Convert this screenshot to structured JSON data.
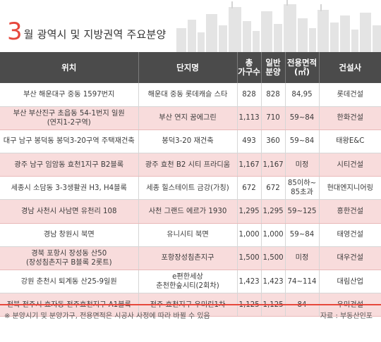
{
  "title": {
    "number": "3",
    "text": "월 광역시 및 지방권역 주요분양"
  },
  "colors": {
    "accent": "#e6473c",
    "header_bg": "#4b4b4b",
    "stripe": "#f8dcdc"
  },
  "table": {
    "headers": {
      "location": "위치",
      "complex": "단지명",
      "total_l1": "총",
      "total_l2": "가구수",
      "general_l1": "일반",
      "general_l2": "분양",
      "area_l1": "전용면적",
      "area_l2": "(㎡)",
      "builder": "건설사"
    },
    "rows": [
      {
        "location": "부산 해운대구 중동 1597번지",
        "location2": "",
        "complex": "해운대 중동 롯데캐슬 스타",
        "complex2": "",
        "total": "828",
        "general": "828",
        "area": "84,95",
        "area2": "",
        "builder": "롯데건설"
      },
      {
        "location": "부산 부산진구 초읍동 54-1번지 일원",
        "location2": "(연지1-2구역)",
        "complex": "부산 연지 꿈에그린",
        "complex2": "",
        "total": "1,113",
        "general": "710",
        "area": "59~84",
        "area2": "",
        "builder": "한화건설"
      },
      {
        "location": "대구 남구 봉덕동 봉덕3-20구역 주택재건축",
        "location2": "",
        "complex": "봉덕3-20 재건축",
        "complex2": "",
        "total": "493",
        "general": "360",
        "area": "59~84",
        "area2": "",
        "builder": "태왕E&C"
      },
      {
        "location": "광주 남구 임암동 효천1지구 B2블록",
        "location2": "",
        "complex": "광주 효천 B2 시티 프라디움",
        "complex2": "",
        "total": "1,167",
        "general": "1,167",
        "area": "미정",
        "area2": "",
        "builder": "시티건설"
      },
      {
        "location": "세종시 소담동 3-3생활권 H3, H4블록",
        "location2": "",
        "complex": "세종 힐스테이트 금강(가칭)",
        "complex2": "",
        "total": "672",
        "general": "672",
        "area": "85이하~",
        "area2": "85초과",
        "builder": "현대엔지니어링"
      },
      {
        "location": "경남 사천시 사남면 유천리 108",
        "location2": "",
        "complex": "사천 그랜드 에르가 1930",
        "complex2": "",
        "total": "1,295",
        "general": "1,295",
        "area": "59~125",
        "area2": "",
        "builder": "흥한건설"
      },
      {
        "location": "경남 창원시 북면",
        "location2": "",
        "complex": "유니시티 북면",
        "complex2": "",
        "total": "1,000",
        "general": "1,000",
        "area": "59~84",
        "area2": "",
        "builder": "태영건설"
      },
      {
        "location": "경북 포항시 장성동 산50",
        "location2": "(장성침촌지구 B블록 2롯트)",
        "complex": "포항장성침촌지구",
        "complex2": "",
        "total": "1,500",
        "general": "1,500",
        "area": "미정",
        "area2": "",
        "builder": "대우건설"
      },
      {
        "location": "강원 춘천시 퇴계동 산25-9일원",
        "location2": "",
        "complex": "e편한세상",
        "complex2": "춘천한숲시티(2회차)",
        "total": "1,423",
        "general": "1,423",
        "area": "74~114",
        "area2": "",
        "builder": "대림산업"
      },
      {
        "location": "전북 전주시 효자동 전주효천지구 A1블록",
        "location2": "",
        "complex": "전주 효천지구 우미린1차",
        "complex2": "",
        "total": "1,125",
        "general": "1,125",
        "area": "84",
        "area2": "",
        "builder": "우미건설"
      }
    ]
  },
  "footer": {
    "note": "※ 분양시기 및 분양가구, 전용면적은 시공사 사정에 따라 바뀔 수 있음",
    "source": "자료 : 부동산인포"
  }
}
